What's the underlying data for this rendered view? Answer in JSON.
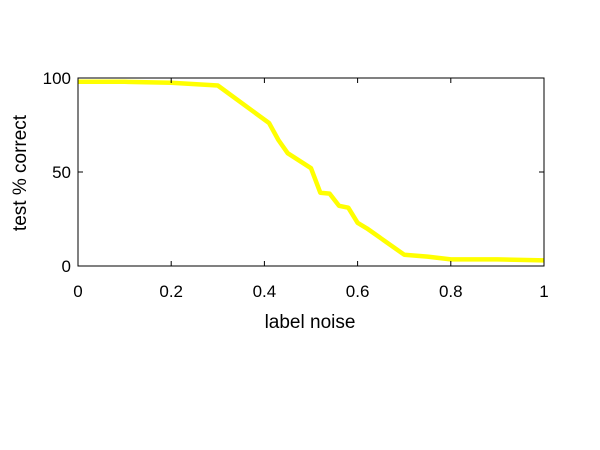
{
  "chart_data": {
    "type": "line",
    "xlabel": "label noise",
    "ylabel": "test % correct",
    "xlim": [
      0,
      1
    ],
    "ylim": [
      0,
      100
    ],
    "x_ticks": [
      0,
      0.2,
      0.4,
      0.6,
      0.8,
      1
    ],
    "x_tick_labels": [
      "0",
      "0.2",
      "0.4",
      "0.6",
      "0.8",
      "1"
    ],
    "y_ticks": [
      0,
      50,
      100
    ],
    "y_tick_labels": [
      "0",
      "50",
      "100"
    ],
    "grid": false,
    "series": [
      {
        "color": "#ffff00",
        "x": [
          0,
          0.1,
          0.2,
          0.3,
          0.41,
          0.43,
          0.45,
          0.5,
          0.52,
          0.54,
          0.56,
          0.58,
          0.6,
          0.62,
          0.7,
          0.75,
          0.8,
          0.85,
          0.9,
          1
        ],
        "y": [
          98,
          98,
          97.5,
          96,
          76,
          67,
          60,
          52,
          39,
          38.5,
          32,
          31,
          23,
          20,
          6,
          5,
          3.5,
          3.5,
          3.5,
          3
        ]
      }
    ]
  }
}
